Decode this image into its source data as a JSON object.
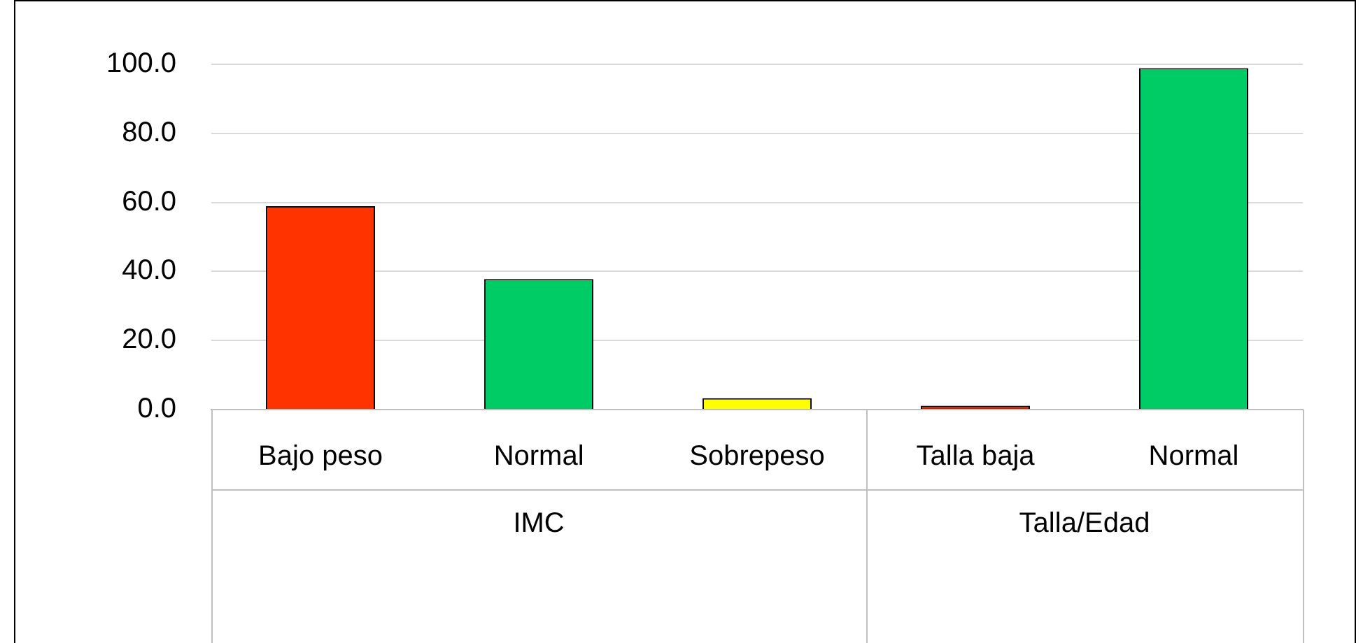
{
  "chart_data": {
    "type": "bar",
    "categories": [
      "Bajo peso",
      "Normal",
      "Sobrepeso",
      "Talla baja",
      "Normal"
    ],
    "values": [
      58.9,
      37.8,
      3.3,
      1.1,
      98.9
    ],
    "colors": [
      "#ff3300",
      "#00cc66",
      "#ffff00",
      "#cc2200",
      "#00cc66"
    ],
    "ylim": [
      0,
      100
    ],
    "yticks": [
      {
        "value": 0,
        "label": "0.0"
      },
      {
        "value": 20,
        "label": "20.0"
      },
      {
        "value": 40,
        "label": "40.0"
      },
      {
        "value": 60,
        "label": "60.0"
      },
      {
        "value": 80,
        "label": "80.0"
      },
      {
        "value": 100,
        "label": "100.0"
      }
    ],
    "grid": "y",
    "annotations": [
      "IMC",
      "Talla/Edad"
    ]
  }
}
